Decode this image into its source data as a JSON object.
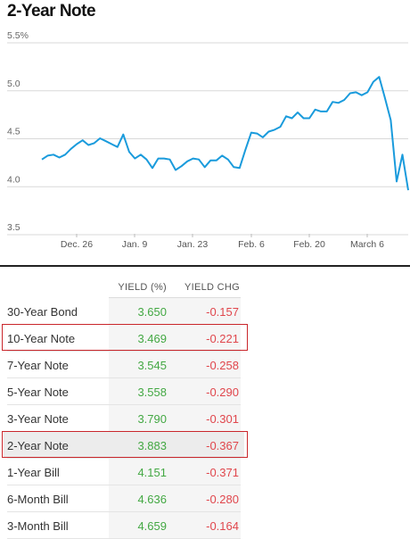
{
  "title": "2-Year Note",
  "chart_data": {
    "type": "line",
    "title": "2-Year Note",
    "y_ticks": [
      "5.5%",
      "5.0",
      "4.5",
      "4.0",
      "3.5"
    ],
    "y_tick_values": [
      5.5,
      5.0,
      4.5,
      4.0,
      3.5
    ],
    "ylim": [
      3.5,
      5.5
    ],
    "x_ticks": [
      "Dec. 26",
      "Jan. 9",
      "Jan. 23",
      "Feb. 6",
      "Feb. 20",
      "March 6"
    ],
    "grid": true,
    "color": "#1a9bdc",
    "series": [
      {
        "values": [
          4.21,
          4.25,
          4.26,
          4.23,
          4.26,
          4.32,
          4.37,
          4.41,
          4.36,
          4.38,
          4.43,
          4.4,
          4.37,
          4.34,
          4.47,
          4.29,
          4.22,
          4.26,
          4.21,
          4.12,
          4.22,
          4.22,
          4.21,
          4.1,
          4.14,
          4.19,
          4.22,
          4.21,
          4.13,
          4.2,
          4.2,
          4.25,
          4.21,
          4.13,
          4.12,
          4.31,
          4.49,
          4.48,
          4.44,
          4.5,
          4.52,
          4.55,
          4.66,
          4.64,
          4.7,
          4.64,
          4.64,
          4.73,
          4.71,
          4.71,
          4.81,
          4.8,
          4.83,
          4.9,
          4.91,
          4.88,
          4.91,
          5.02,
          5.07,
          4.85,
          4.62,
          3.98,
          4.26,
          3.89
        ]
      }
    ]
  },
  "table": {
    "headers": {
      "yield": "YIELD (%)",
      "chg": "YIELD CHG"
    },
    "rows": [
      {
        "name": "30-Year Bond",
        "yield": "3.650",
        "chg": "-0.157"
      },
      {
        "name": "10-Year Note",
        "yield": "3.469",
        "chg": "-0.221"
      },
      {
        "name": "7-Year Note",
        "yield": "3.545",
        "chg": "-0.258"
      },
      {
        "name": "5-Year Note",
        "yield": "3.558",
        "chg": "-0.290"
      },
      {
        "name": "3-Year Note",
        "yield": "3.790",
        "chg": "-0.301"
      },
      {
        "name": "2-Year Note",
        "yield": "3.883",
        "chg": "-0.367"
      },
      {
        "name": "1-Year Bill",
        "yield": "4.151",
        "chg": "-0.371"
      },
      {
        "name": "6-Month Bill",
        "yield": "4.636",
        "chg": "-0.280"
      },
      {
        "name": "3-Month Bill",
        "yield": "4.659",
        "chg": "-0.164"
      }
    ],
    "boxed_rows": [
      "10-Year Note",
      "2-Year Note"
    ],
    "highlighted_row": "2-Year Note",
    "yield_color": "#43a843",
    "chg_color": "#e0464c",
    "box_color": "#c9262b"
  }
}
